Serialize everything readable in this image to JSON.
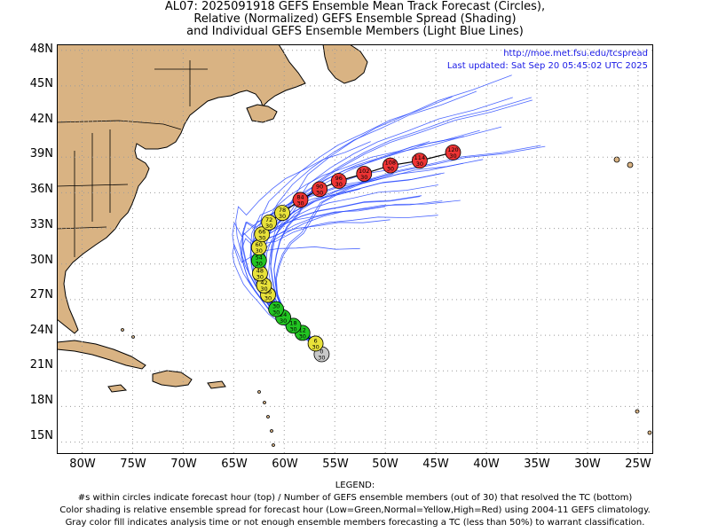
{
  "title": {
    "line1": "AL07: 2025091918 GEFS Ensemble Mean Track Forecast (Circles),",
    "line2": "Relative (Normalized) GEFS Ensemble Spread (Shading)",
    "line3": "and Individual GEFS Ensemble Members (Light Blue Lines)"
  },
  "credit": {
    "url": "http://moe.met.fsu.edu/tcspread",
    "updated": "Last updated: Sat Sep 20 05:45:02 UTC 2025"
  },
  "axes": {
    "lat_labels": [
      "48N",
      "45N",
      "42N",
      "39N",
      "36N",
      "33N",
      "30N",
      "27N",
      "24N",
      "21N",
      "18N",
      "15N"
    ],
    "lon_labels": [
      "80W",
      "75W",
      "70W",
      "65W",
      "60W",
      "55W",
      "50W",
      "45W",
      "40W",
      "35W",
      "30W",
      "25W"
    ],
    "lat_range": [
      14,
      48.5
    ],
    "lon_range": [
      -82.5,
      -23.5
    ]
  },
  "legend": {
    "heading": "LEGEND:",
    "line1": "#s within circles indicate forecast hour (top) / Number of GEFS ensemble members (out of 30) that resolved the TC (bottom)",
    "line2": "Color shading is relative ensemble spread for forecast hour (Low=Green,Normal=Yellow,High=Red) using 2004-11 GEFS climatology.",
    "line3": "Gray color fill indicates analysis time or not enough ensemble members forecasting a TC (less than 50%) to warrant classification."
  },
  "colors": {
    "land": "#d9b383",
    "ocean": "#ffffff",
    "member_line": "#2b4bff",
    "track_line": "#000000",
    "low": "#22c522",
    "normal": "#e8e23a",
    "high": "#ee3434",
    "analysis": "#c8c8c8"
  },
  "track": [
    {
      "hour": "0",
      "members": "30",
      "lon": -56.3,
      "lat": 22.4,
      "spread": "analysis"
    },
    {
      "hour": "6",
      "members": "30",
      "lon": -56.9,
      "lat": 23.3,
      "spread": "normal"
    },
    {
      "hour": "12",
      "members": "30",
      "lon": -58.2,
      "lat": 24.2,
      "spread": "low"
    },
    {
      "hour": "18",
      "members": "30",
      "lon": -59.1,
      "lat": 24.8,
      "spread": "low"
    },
    {
      "hour": "24",
      "members": "30",
      "lon": -60.1,
      "lat": 25.5,
      "spread": "low"
    },
    {
      "hour": "30",
      "members": "30",
      "lon": -60.8,
      "lat": 26.2,
      "spread": "low"
    },
    {
      "hour": "36",
      "members": "30",
      "lon": -61.6,
      "lat": 27.4,
      "spread": "normal"
    },
    {
      "hour": "42",
      "members": "30",
      "lon": -62.0,
      "lat": 28.2,
      "spread": "normal"
    },
    {
      "hour": "48",
      "members": "30",
      "lon": -62.4,
      "lat": 29.2,
      "spread": "normal"
    },
    {
      "hour": "54",
      "members": "30",
      "lon": -62.5,
      "lat": 30.3,
      "spread": "low"
    },
    {
      "hour": "60",
      "members": "30",
      "lon": -62.5,
      "lat": 31.4,
      "spread": "normal"
    },
    {
      "hour": "66",
      "members": "30",
      "lon": -62.2,
      "lat": 32.5,
      "spread": "normal"
    },
    {
      "hour": "72",
      "members": "30",
      "lon": -61.5,
      "lat": 33.5,
      "spread": "normal"
    },
    {
      "hour": "78",
      "members": "30",
      "lon": -60.2,
      "lat": 34.3,
      "spread": "normal"
    },
    {
      "hour": "84",
      "members": "30",
      "lon": -58.4,
      "lat": 35.4,
      "spread": "high"
    },
    {
      "hour": "90",
      "members": "30",
      "lon": -56.5,
      "lat": 36.3,
      "spread": "high"
    },
    {
      "hour": "96",
      "members": "30",
      "lon": -54.6,
      "lat": 37.0,
      "spread": "high"
    },
    {
      "hour": "102",
      "members": "30",
      "lon": -52.1,
      "lat": 37.6,
      "spread": "high"
    },
    {
      "hour": "108",
      "members": "30",
      "lon": -49.5,
      "lat": 38.3,
      "spread": "high"
    },
    {
      "hour": "114",
      "members": "30",
      "lon": -46.6,
      "lat": 38.7,
      "spread": "high"
    },
    {
      "hour": "120",
      "members": "30",
      "lon": -43.3,
      "lat": 39.4,
      "spread": "high"
    }
  ]
}
